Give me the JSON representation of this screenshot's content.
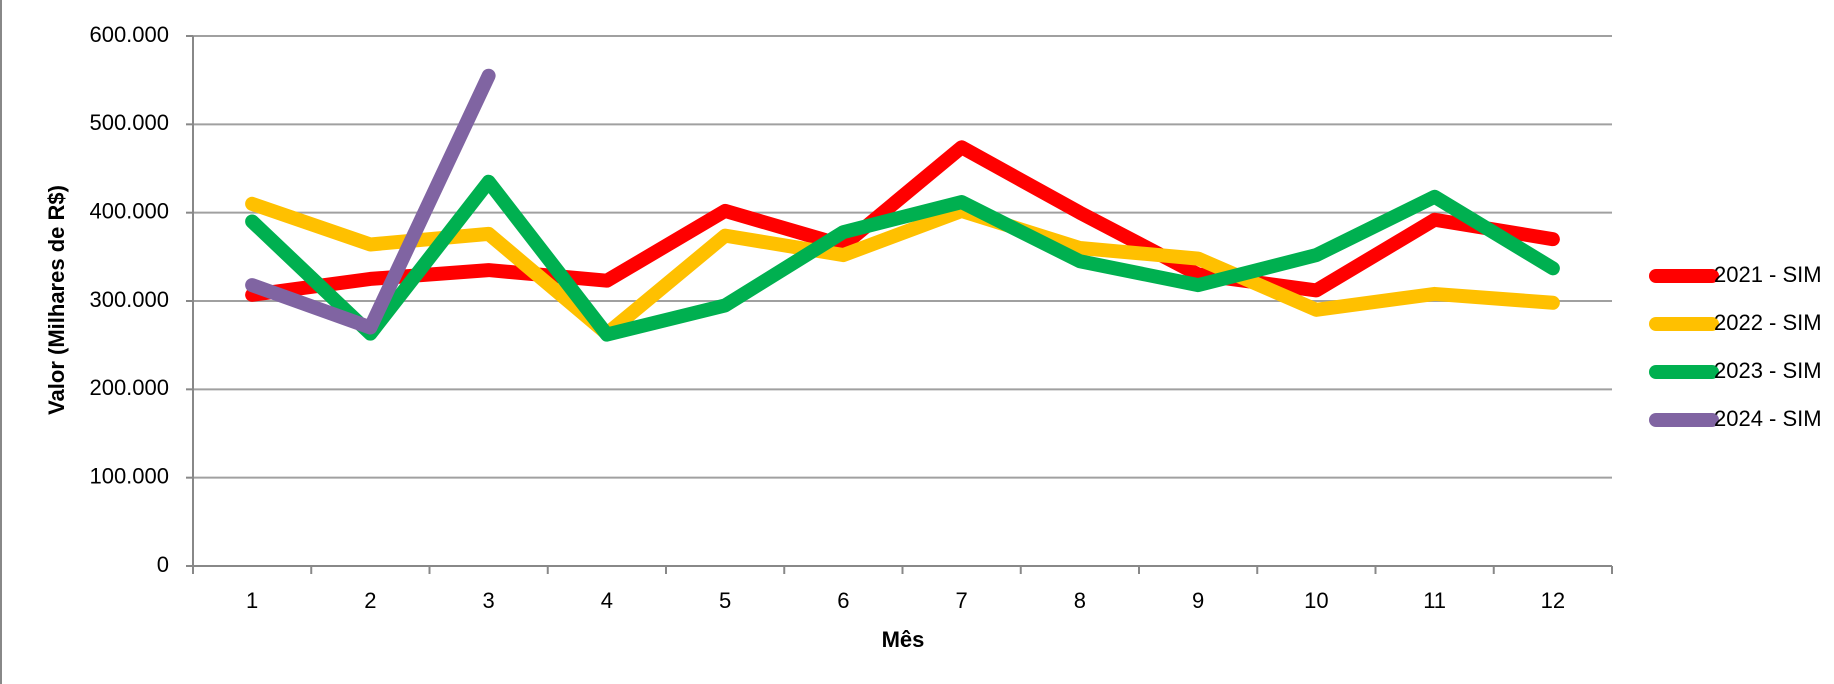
{
  "chart_data": {
    "type": "line",
    "x_label": "Mês",
    "y_label": "Valor (Milhares de R$)",
    "categories": [
      "1",
      "2",
      "3",
      "4",
      "5",
      "6",
      "7",
      "8",
      "9",
      "10",
      "11",
      "12"
    ],
    "series": [
      {
        "name": "2021 - SIM",
        "color": "#ff0000",
        "values": [
          307,
          325,
          335,
          323,
          402,
          363,
          474,
          400,
          330,
          312,
          392,
          370
        ]
      },
      {
        "name": "2022 - SIM",
        "color": "#ffc000",
        "values": [
          410,
          364,
          376,
          263,
          374,
          352,
          402,
          360,
          348,
          290,
          308,
          298
        ]
      },
      {
        "name": "2023 - SIM",
        "color": "#00b050",
        "values": [
          390,
          263,
          435,
          262,
          295,
          378,
          412,
          345,
          318,
          352,
          418,
          337
        ]
      },
      {
        "name": "2024 - SIM",
        "color": "#8064a2",
        "values": [
          318,
          270,
          555,
          null,
          null,
          null,
          null,
          null,
          null,
          null,
          null,
          null
        ]
      }
    ],
    "ylim": [
      0,
      600
    ],
    "yticks": [
      {
        "value": 0,
        "label": "0"
      },
      {
        "value": 100,
        "label": "100.000"
      },
      {
        "value": 200,
        "label": "200.000"
      },
      {
        "value": 300,
        "label": "300.000"
      },
      {
        "value": 400,
        "label": "400.000"
      },
      {
        "value": 500,
        "label": "500.000"
      },
      {
        "value": 600,
        "label": "600.000"
      }
    ],
    "grid": true,
    "legend": "right"
  }
}
